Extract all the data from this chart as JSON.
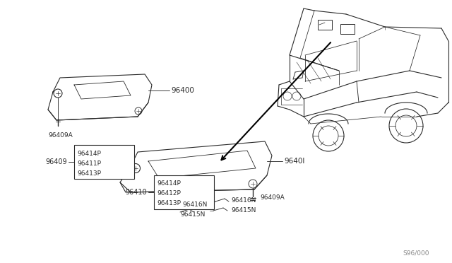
{
  "bg_color": "#ffffff",
  "line_color": "#2a2a2a",
  "text_color": "#2a2a2a",
  "fig_width": 6.4,
  "fig_height": 3.72,
  "dpi": 100,
  "watermark": "S96/000",
  "upper_visor_label": "96400",
  "lower_visor_label": "9640l",
  "upper_hook_label": "96409A",
  "lower_hook_label": "96409A",
  "upper_box_label": "96409",
  "lower_box_label": "96410",
  "upper_box_items": [
    "96414P",
    "96411P",
    "96413P"
  ],
  "lower_box_items": [
    "96414P",
    "96412P",
    "96413P"
  ],
  "label_96416N": "96416N",
  "label_96415N": "96415N"
}
